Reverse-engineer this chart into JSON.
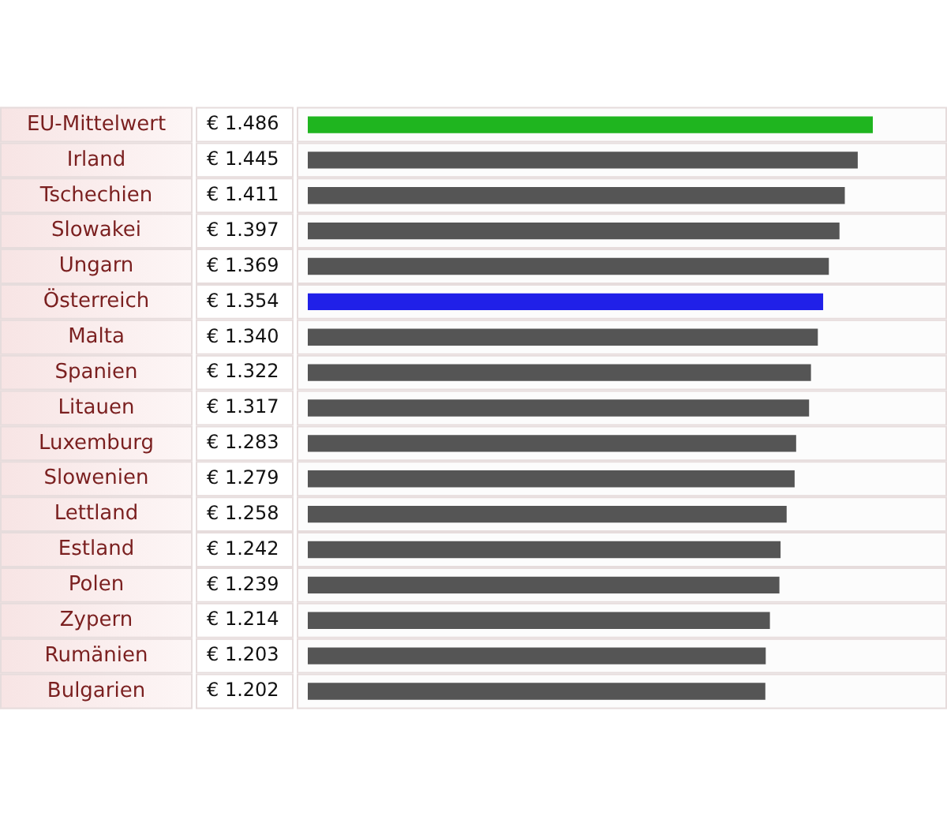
{
  "chart_data": {
    "type": "bar",
    "orientation": "horizontal",
    "categories": [
      "EU-Mittelwert",
      "Irland",
      "Tschechien",
      "Slowakei",
      "Ungarn",
      "Österreich",
      "Malta",
      "Spanien",
      "Litauen",
      "Luxemburg",
      "Slowenien",
      "Lettland",
      "Estland",
      "Polen",
      "Zypern",
      "Rumänien",
      "Bulgarien"
    ],
    "values": [
      1.486,
      1.445,
      1.411,
      1.397,
      1.369,
      1.354,
      1.34,
      1.322,
      1.317,
      1.283,
      1.279,
      1.258,
      1.242,
      1.239,
      1.214,
      1.203,
      1.202
    ],
    "colors": [
      "#1fb51f",
      "#555555",
      "#555555",
      "#555555",
      "#555555",
      "#2020e8",
      "#555555",
      "#555555",
      "#555555",
      "#555555",
      "#555555",
      "#555555",
      "#555555",
      "#555555",
      "#555555",
      "#555555",
      "#555555"
    ],
    "value_labels": [
      "€ 1.486",
      "€ 1.445",
      "€ 1.411",
      "€ 1.397",
      "€ 1.369",
      "€ 1.354",
      "€ 1.340",
      "€ 1.322",
      "€ 1.317",
      "€ 1.283",
      "€ 1.279",
      "€ 1.258",
      "€ 1.242",
      "€ 1.239",
      "€ 1.214",
      "€ 1.203",
      "€ 1.202"
    ]
  }
}
